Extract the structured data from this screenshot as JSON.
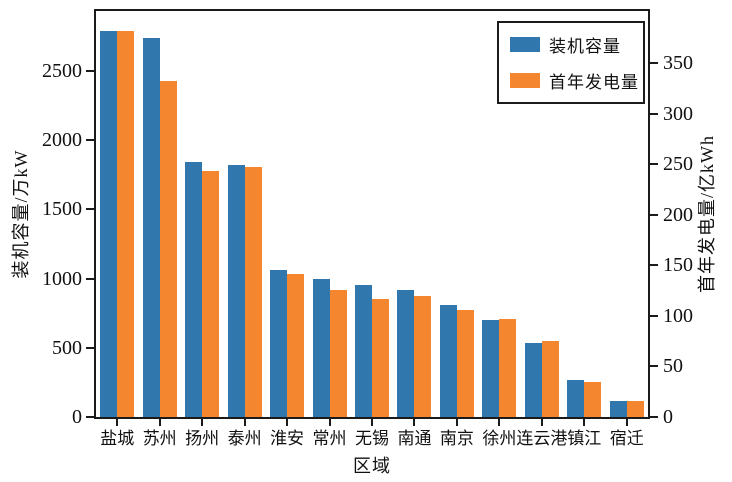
{
  "chart_data": {
    "type": "bar",
    "categories": [
      "盐城",
      "苏州",
      "扬州",
      "泰州",
      "淮安",
      "常州",
      "无锡",
      "南通",
      "南京",
      "徐州",
      "连云港",
      "镇江",
      "宿迁"
    ],
    "series": [
      {
        "name": "装机容量",
        "axis": "left",
        "unit": "万kW",
        "color": "#2f77ad",
        "values": [
          2790,
          2740,
          1840,
          1820,
          1060,
          995,
          955,
          920,
          810,
          700,
          535,
          265,
          118
        ]
      },
      {
        "name": "首年发电量",
        "axis": "right",
        "unit": "亿kWh",
        "color": "#f4862f",
        "values": [
          382,
          332,
          243,
          247,
          141,
          126,
          117,
          120,
          106,
          97,
          75,
          35,
          16
        ]
      }
    ],
    "title": "",
    "xlabel": "区域",
    "ylabel_left": "装机容量/万kW",
    "ylabel_right": "首年发电量/亿kWh",
    "left_axis": {
      "min": 0,
      "max": 2500,
      "step": 500,
      "ticks": [
        0,
        500,
        1000,
        1500,
        2000,
        2500
      ]
    },
    "right_axis": {
      "min": 0,
      "max": 350,
      "step": 50,
      "ticks": [
        0,
        50,
        100,
        150,
        200,
        250,
        300,
        350
      ]
    },
    "legend": [
      "装机容量",
      "首年发电量"
    ],
    "legend_position": "upper right",
    "grid": false,
    "frame": true,
    "colors": {
      "bar_blue": "#2f77ad",
      "bar_orange": "#f4862f",
      "axis": "#1b1b1b",
      "text": "#111111"
    }
  }
}
